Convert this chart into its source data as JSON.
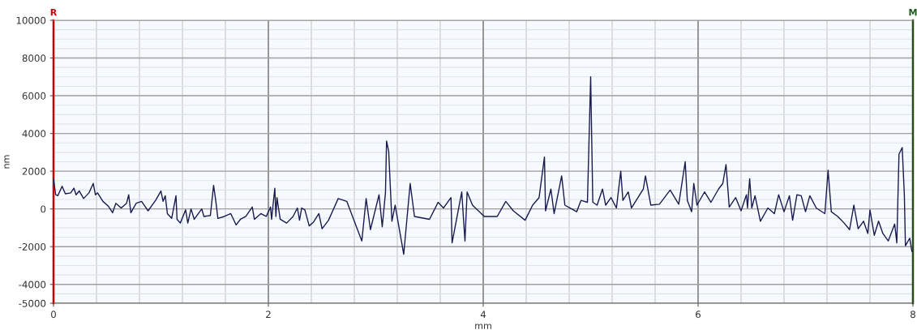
{
  "chart_data": {
    "type": "line",
    "xlabel": "mm",
    "ylabel": "nm",
    "annotations": [
      "R",
      "M"
    ],
    "xlim": [
      0,
      8
    ],
    "xticks": [
      0,
      2,
      4,
      6,
      8
    ],
    "ylim": [
      -5000,
      10000
    ],
    "yticks": [
      -5000,
      -4000,
      -2000,
      0,
      2000,
      4000,
      6000,
      8000,
      10000
    ],
    "grid": true,
    "marker": "none",
    "line_style": "solid",
    "series": [
      {
        "color": "#1a1a50",
        "x": [
          0.0,
          0.02,
          0.04,
          0.08,
          0.11,
          0.16,
          0.19,
          0.21,
          0.24,
          0.28,
          0.33,
          0.37,
          0.39,
          0.41,
          0.46,
          0.51,
          0.55,
          0.58,
          0.63,
          0.68,
          0.7,
          0.72,
          0.77,
          0.82,
          0.88,
          0.95,
          1.0,
          1.02,
          1.04,
          1.06,
          1.1,
          1.14,
          1.15,
          1.18,
          1.23,
          1.25,
          1.28,
          1.31,
          1.38,
          1.4,
          1.46,
          1.49,
          1.51,
          1.53,
          1.59,
          1.65,
          1.7,
          1.74,
          1.79,
          1.85,
          1.87,
          1.93,
          1.98,
          2.02,
          2.03,
          2.06,
          2.07,
          2.08,
          2.11,
          2.17,
          2.23,
          2.27,
          2.29,
          2.31,
          2.34,
          2.38,
          2.42,
          2.47,
          2.5,
          2.56,
          2.65,
          2.73,
          2.87,
          2.91,
          2.95,
          3.03,
          3.06,
          3.09,
          3.1,
          3.12,
          3.15,
          3.18,
          3.26,
          3.32,
          3.36,
          3.5,
          3.58,
          3.63,
          3.7,
          3.71,
          3.8,
          3.83,
          3.85,
          3.9,
          4.01,
          4.13,
          4.21,
          4.28,
          4.39,
          4.46,
          4.52,
          4.57,
          4.58,
          4.63,
          4.66,
          4.73,
          4.76,
          4.87,
          4.91,
          4.97,
          5.0,
          5.02,
          5.06,
          5.11,
          5.14,
          5.19,
          5.24,
          5.28,
          5.3,
          5.35,
          5.38,
          5.49,
          5.51,
          5.56,
          5.64,
          5.74,
          5.82,
          5.88,
          5.9,
          5.94,
          5.96,
          5.99,
          6.06,
          6.12,
          6.19,
          6.23,
          6.26,
          6.29,
          6.35,
          6.4,
          6.45,
          6.46,
          6.48,
          6.5,
          6.53,
          6.58,
          6.65,
          6.71,
          6.75,
          6.8,
          6.85,
          6.88,
          6.92,
          6.96,
          7.0,
          7.04,
          7.1,
          7.18,
          7.21,
          7.24,
          7.3,
          7.36,
          7.41,
          7.45,
          7.49,
          7.54,
          7.58,
          7.6,
          7.64,
          7.68,
          7.72,
          7.77,
          7.83,
          7.85,
          7.87,
          7.9,
          7.92,
          7.93,
          7.97,
          7.99
        ],
        "values": [
          1600,
          750,
          700,
          1200,
          800,
          850,
          1100,
          750,
          950,
          550,
          850,
          1350,
          750,
          850,
          400,
          150,
          -200,
          300,
          50,
          300,
          750,
          -200,
          300,
          400,
          -100,
          450,
          950,
          400,
          700,
          -250,
          -500,
          700,
          -550,
          -750,
          -50,
          -750,
          0,
          -550,
          0,
          -400,
          -350,
          1250,
          450,
          -500,
          -400,
          -250,
          -850,
          -550,
          -400,
          100,
          -550,
          -250,
          -400,
          100,
          -550,
          1100,
          -400,
          600,
          -550,
          -750,
          -400,
          50,
          -600,
          50,
          -50,
          -900,
          -700,
          -250,
          -1050,
          -600,
          550,
          400,
          -1700,
          550,
          -1100,
          750,
          -950,
          850,
          3600,
          3050,
          -650,
          200,
          -2400,
          1350,
          -400,
          -550,
          350,
          50,
          600,
          -1800,
          900,
          -1700,
          900,
          200,
          -400,
          -400,
          400,
          -100,
          -600,
          200,
          600,
          2750,
          -100,
          1050,
          -250,
          1750,
          200,
          -150,
          450,
          350,
          7000,
          350,
          200,
          1050,
          200,
          600,
          50,
          2000,
          450,
          900,
          50,
          1050,
          1750,
          200,
          250,
          1000,
          250,
          2500,
          450,
          -150,
          1350,
          200,
          900,
          350,
          1050,
          1350,
          2350,
          100,
          600,
          -100,
          750,
          50,
          1600,
          50,
          700,
          -650,
          50,
          -250,
          750,
          -150,
          700,
          -600,
          750,
          700,
          -150,
          700,
          50,
          -250,
          2050,
          -150,
          -400,
          -750,
          -1100,
          200,
          -1050,
          -650,
          -1300,
          -50,
          -1400,
          -650,
          -1300,
          -1700,
          -800,
          -1800,
          2900,
          3250,
          750,
          -1950,
          -1550,
          -2250
        ]
      }
    ]
  }
}
